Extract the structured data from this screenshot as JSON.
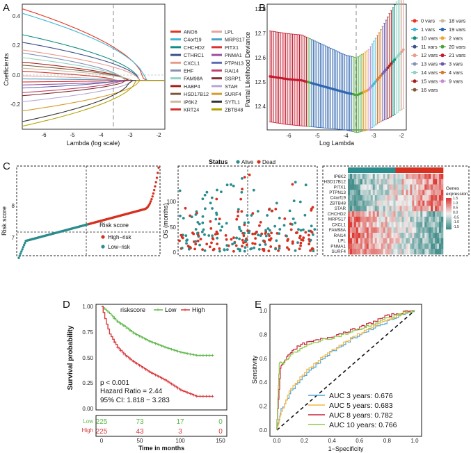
{
  "panels": {
    "A": {
      "letter": "A",
      "xlabel": "Lambda (log scale)",
      "ylabel": "Coefficients",
      "xticks": [
        "-6",
        "-5",
        "-4",
        "-3",
        "-2"
      ],
      "yticks": [
        "0.4",
        "0.2",
        "0.0",
        "-0.2"
      ],
      "legend_col1": [
        {
          "label": "ANO6",
          "color": "#e7331f"
        },
        {
          "label": "C4orf19",
          "color": "#3fb6d4"
        },
        {
          "label": "CHCHD2",
          "color": "#0f8e7f"
        },
        {
          "label": "CTHRC1",
          "color": "#3c4f8a"
        },
        {
          "label": "CXCL1",
          "color": "#e89b8b"
        },
        {
          "label": "EHF",
          "color": "#8492b8"
        },
        {
          "label": "FAM98A",
          "color": "#8fd1c2"
        },
        {
          "label": "HABP4",
          "color": "#a41e1a"
        },
        {
          "label": "HSD17B12",
          "color": "#7a5a3a"
        },
        {
          "label": "IP6K2",
          "color": "#c9b9a0"
        },
        {
          "label": "KRT24",
          "color": "#d2312a"
        }
      ],
      "legend_col2": [
        {
          "label": "LPL",
          "color": "#e8a39b"
        },
        {
          "label": "MRPS17",
          "color": "#49a0c8"
        },
        {
          "label": "PITX1",
          "color": "#d93232"
        },
        {
          "label": "PNMA1",
          "color": "#9b4fa2"
        },
        {
          "label": "PTPN13",
          "color": "#5d6bb2"
        },
        {
          "label": "RAI14",
          "color": "#c33f6c"
        },
        {
          "label": "SSRP1",
          "color": "#7e2f2f"
        },
        {
          "label": "STAR",
          "color": "#b6a8d6"
        },
        {
          "label": "SURF4",
          "color": "#d49b2a"
        },
        {
          "label": "SYTL1",
          "color": "#333333"
        },
        {
          "label": "ZBTB48",
          "color": "#b3a100"
        }
      ],
      "vline_log_lambda": -3.6
    },
    "B": {
      "letter": "B",
      "xlabel": "Log Lambda",
      "ylabel": "Partial Likelihood Deviance",
      "xticks": [
        "-6",
        "-5",
        "-4",
        "-3",
        "-2"
      ],
      "yticks": [
        "12.8",
        "12.7",
        "12.6",
        "12.5",
        "12.4"
      ],
      "legend_col1": [
        {
          "label": "0 vars",
          "color": "#e7331f"
        },
        {
          "label": "1 vars",
          "color": "#3fb6d4"
        },
        {
          "label": "10 vars",
          "color": "#0f8e7f"
        },
        {
          "label": "11 vars",
          "color": "#3c4f8a"
        },
        {
          "label": "12 vars",
          "color": "#e89b8b"
        },
        {
          "label": "13 vars",
          "color": "#8492b8"
        },
        {
          "label": "14 vars",
          "color": "#8fd1c2"
        },
        {
          "label": "15 vars",
          "color": "#a41e1a"
        },
        {
          "label": "16 vars",
          "color": "#7a5a3a"
        }
      ],
      "legend_col2": [
        {
          "label": "18 vars",
          "color": "#c9b9a0"
        },
        {
          "label": "19 vars",
          "color": "#2f66b0"
        },
        {
          "label": "2 vars",
          "color": "#f0a332"
        },
        {
          "label": "20 vars",
          "color": "#4aa53a"
        },
        {
          "label": "21 vars",
          "color": "#c21a2e"
        },
        {
          "label": "3 vars",
          "color": "#6b58a8"
        },
        {
          "label": "4 vars",
          "color": "#d8782a"
        },
        {
          "label": "9 vars",
          "color": "#c58ad0"
        }
      ],
      "min_log_lambda": -3.6,
      "min_deviance": 12.48
    },
    "C": {
      "letter": "C",
      "risk_ylabel": "Risk score",
      "risk_yticks": [
        "8",
        "7"
      ],
      "risk_legend_title": "Risk score",
      "risk_legend_high": "High−risk",
      "risk_legend_low": "Low−risk",
      "status_title": "Status",
      "status_alive": "Alive",
      "status_dead": "Dead",
      "os_ylabel": "OS (months)",
      "os_yticks": [
        "100",
        "50",
        "0"
      ],
      "high_color": "#d7301f",
      "low_color": "#2a8c8c",
      "heatmap_genes": [
        "IP6K2",
        "HSD17B12",
        "PITX1",
        "PTPN13",
        "C4orf19",
        "ZBTB48",
        "STAR",
        "CHCHD2",
        "MRPS17",
        "CXCL1",
        "FAM98A",
        "RAI14",
        "LPL",
        "PNMA1",
        "SURF4"
      ],
      "heatmap_legend_title_1": "Genes",
      "heatmap_legend_title_2": "expression",
      "heatmap_scale": [
        "1.5",
        "1.0",
        "0.5",
        "0.0",
        "-0.5",
        "-1.0",
        "-1.5"
      ]
    },
    "D": {
      "letter": "D",
      "legend_title": "riskscore",
      "legend_low": "Low",
      "legend_high": "High",
      "ylabel": "Survival probability",
      "xlabel": "Time in months",
      "yticks": [
        "1.00",
        "0.75",
        "0.50",
        "0.25",
        "0.00"
      ],
      "xticks": [
        "0",
        "50",
        "100",
        "150"
      ],
      "pvalue": "p < 0.001",
      "hazard": "Hazard Ratio = 2.44",
      "ci": "95% CI: 1.818 − 3.283",
      "low_color": "#5fb84a",
      "high_color": "#d9393c",
      "risk_table": {
        "low_label": "Low",
        "high_label": "High",
        "low_counts": [
          "225",
          "73",
          "17",
          "0"
        ],
        "high_counts": [
          "225",
          "43",
          "3",
          "0"
        ]
      }
    },
    "E": {
      "letter": "E",
      "ylabel": "Sensitivity",
      "xlabel": "1−Specificity",
      "ticks": [
        "0.0",
        "0.2",
        "0.4",
        "0.6",
        "0.8",
        "1.0"
      ],
      "legend": [
        {
          "label": "AUC 3 years: 0.676",
          "color": "#4aa6d8"
        },
        {
          "label": "AUC 5 years: 0.683",
          "color": "#f4b642"
        },
        {
          "label": "AUC 8 years: 0.782",
          "color": "#c8203a"
        },
        {
          "label": "AUC 10 years: 0.766",
          "color": "#8fc94a"
        }
      ]
    }
  },
  "chart_data": [
    {
      "panel": "A",
      "type": "line",
      "title": "",
      "xlabel": "Lambda (log scale)",
      "ylabel": "Coefficients",
      "xlim": [
        -6.7,
        -1.9
      ],
      "ylim": [
        -0.32,
        0.5
      ],
      "series_endpoints_at_min_lambda": [
        0.47,
        0.44,
        0.3,
        0.25,
        0.2,
        0.18,
        0.15,
        0.12,
        0.1,
        0.08,
        0.06,
        0.03,
        0.01,
        -0.01,
        -0.03,
        -0.05,
        -0.08,
        -0.1,
        -0.14,
        -0.2,
        -0.27,
        -0.3
      ]
    },
    {
      "panel": "B",
      "type": "scatter",
      "title": "",
      "xlabel": "Log Lambda",
      "ylabel": "Partial Likelihood Deviance",
      "xlim": [
        -6.7,
        -1.9
      ],
      "ylim": [
        12.35,
        12.82
      ],
      "x": [
        -6.6,
        -6.0,
        -5.5,
        -5.0,
        -4.5,
        -4.0,
        -3.6,
        -3.2,
        -2.8,
        -2.4,
        -2.0
      ],
      "y": [
        12.55,
        12.54,
        12.535,
        12.52,
        12.505,
        12.49,
        12.48,
        12.5,
        12.55,
        12.6,
        12.65
      ],
      "error": [
        0.17,
        0.17,
        0.17,
        0.16,
        0.15,
        0.14,
        0.14,
        0.15,
        0.17,
        0.2,
        0.22
      ]
    },
    {
      "panel": "C-risk",
      "type": "scatter",
      "title": "",
      "ylabel": "Risk score",
      "n_points": 450,
      "ylim": [
        6.3,
        8.6
      ]
    },
    {
      "panel": "C-status",
      "type": "scatter",
      "title": "Status",
      "ylabel": "OS (months)",
      "ylim": [
        0,
        150
      ]
    },
    {
      "panel": "C-heatmap",
      "type": "heatmap",
      "rows": [
        "IP6K2",
        "HSD17B12",
        "PITX1",
        "PTPN13",
        "C4orf19",
        "ZBTB48",
        "STAR",
        "CHCHD2",
        "MRPS17",
        "CXCL1",
        "FAM98A",
        "RAI14",
        "LPL",
        "PNMA1",
        "SURF4"
      ],
      "value_range": [
        -1.5,
        1.5
      ]
    },
    {
      "panel": "D",
      "type": "line",
      "title": "",
      "xlabel": "Time in months",
      "ylabel": "Survival probability",
      "xlim": [
        0,
        150
      ],
      "ylim": [
        0,
        1
      ],
      "series": [
        {
          "name": "Low",
          "x": [
            0,
            10,
            20,
            30,
            40,
            50,
            60,
            80,
            100,
            120,
            140
          ],
          "y": [
            1.0,
            0.93,
            0.85,
            0.8,
            0.74,
            0.7,
            0.66,
            0.6,
            0.55,
            0.52,
            0.52
          ]
        },
        {
          "name": "High",
          "x": [
            0,
            5,
            10,
            20,
            30,
            40,
            50,
            60,
            80,
            100,
            120,
            140
          ],
          "y": [
            1.0,
            0.85,
            0.73,
            0.6,
            0.52,
            0.46,
            0.41,
            0.36,
            0.28,
            0.18,
            0.12,
            0.12
          ]
        }
      ],
      "annotations": [
        "p < 0.001",
        "Hazard Ratio = 2.44",
        "95% CI: 1.818 − 3.283"
      ]
    },
    {
      "panel": "E",
      "type": "line",
      "title": "",
      "xlabel": "1−Specificity",
      "ylabel": "Sensitivity",
      "xlim": [
        0,
        1
      ],
      "ylim": [
        0,
        1
      ],
      "series": [
        {
          "name": "AUC 3 years: 0.676",
          "x": [
            0,
            0.03,
            0.1,
            0.2,
            0.3,
            0.4,
            0.5,
            0.6,
            0.7,
            0.8,
            0.9,
            1.0
          ],
          "y": [
            0,
            0.15,
            0.3,
            0.45,
            0.55,
            0.65,
            0.72,
            0.79,
            0.85,
            0.9,
            0.96,
            1.0
          ]
        },
        {
          "name": "AUC 5 years: 0.683",
          "x": [
            0,
            0.03,
            0.1,
            0.2,
            0.3,
            0.4,
            0.5,
            0.6,
            0.7,
            0.8,
            0.9,
            1.0
          ],
          "y": [
            0,
            0.12,
            0.32,
            0.47,
            0.57,
            0.66,
            0.73,
            0.8,
            0.86,
            0.91,
            0.96,
            1.0
          ]
        },
        {
          "name": "AUC 8 years: 0.782",
          "x": [
            0,
            0.03,
            0.06,
            0.12,
            0.2,
            0.3,
            0.4,
            0.5,
            0.6,
            0.7,
            0.8,
            0.9,
            1.0
          ],
          "y": [
            0,
            0.52,
            0.58,
            0.67,
            0.72,
            0.75,
            0.78,
            0.82,
            0.85,
            0.9,
            0.95,
            0.98,
            1.0
          ]
        },
        {
          "name": "AUC 10 years: 0.766",
          "x": [
            0,
            0.02,
            0.05,
            0.1,
            0.2,
            0.3,
            0.4,
            0.5,
            0.6,
            0.7,
            0.8,
            0.9,
            1.0
          ],
          "y": [
            0,
            0.56,
            0.56,
            0.62,
            0.69,
            0.74,
            0.77,
            0.8,
            0.84,
            0.88,
            0.93,
            0.97,
            1.0
          ]
        }
      ]
    }
  ]
}
